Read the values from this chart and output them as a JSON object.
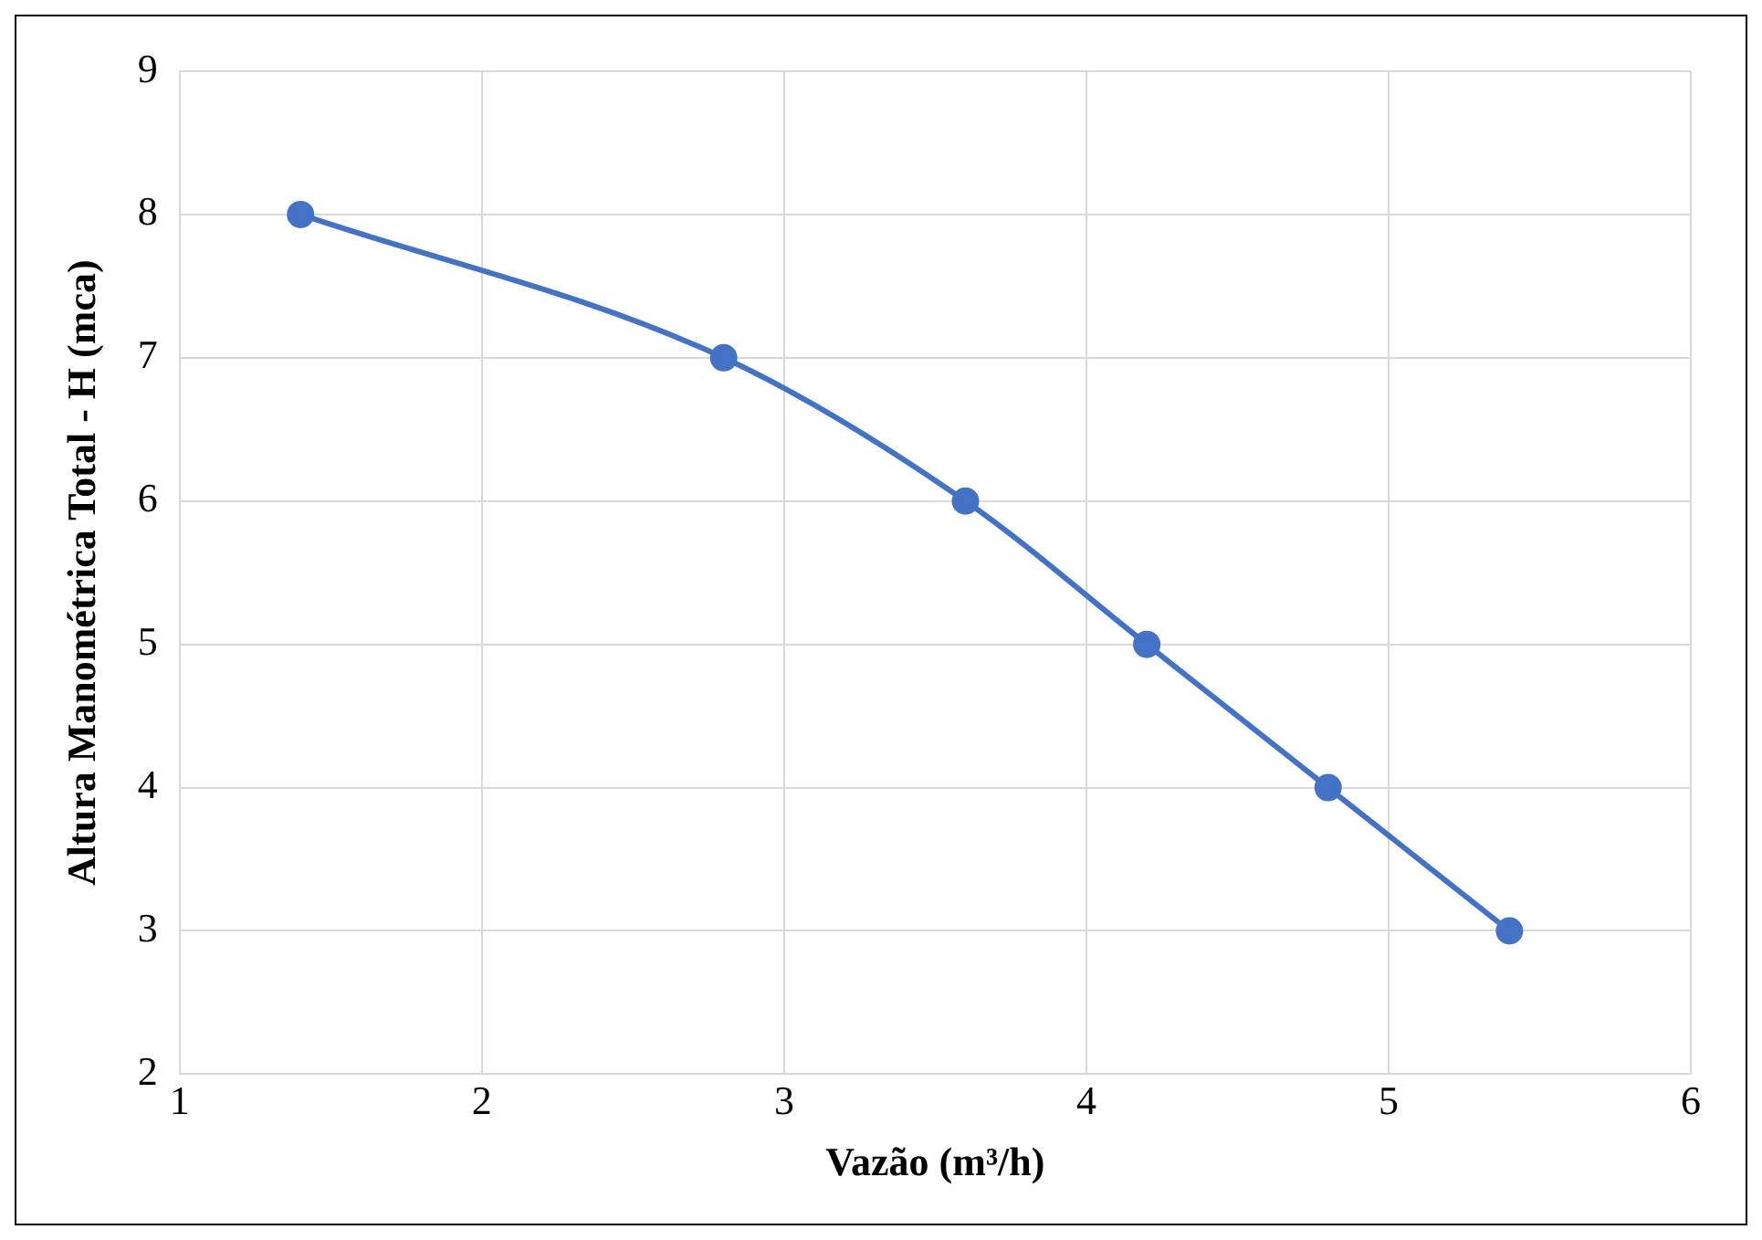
{
  "chart_data": {
    "type": "line",
    "xlabel": "Vazão (m³/h)",
    "ylabel": "Altura Manométrica Total - H (mca)",
    "x": [
      1.4,
      2.8,
      3.6,
      4.2,
      4.8,
      5.4
    ],
    "series": [
      {
        "color": "#4472c4",
        "values": [
          8,
          7,
          6,
          5,
          4,
          3
        ]
      }
    ],
    "xlim": [
      1,
      6
    ],
    "xticks": [
      1,
      2,
      3,
      4,
      5,
      6
    ],
    "ylim": [
      2,
      9
    ],
    "yticks": [
      2,
      3,
      4,
      5,
      6,
      7,
      8,
      9
    ],
    "grid": true,
    "legend": false,
    "marker": "circle",
    "line_style": "solid"
  }
}
